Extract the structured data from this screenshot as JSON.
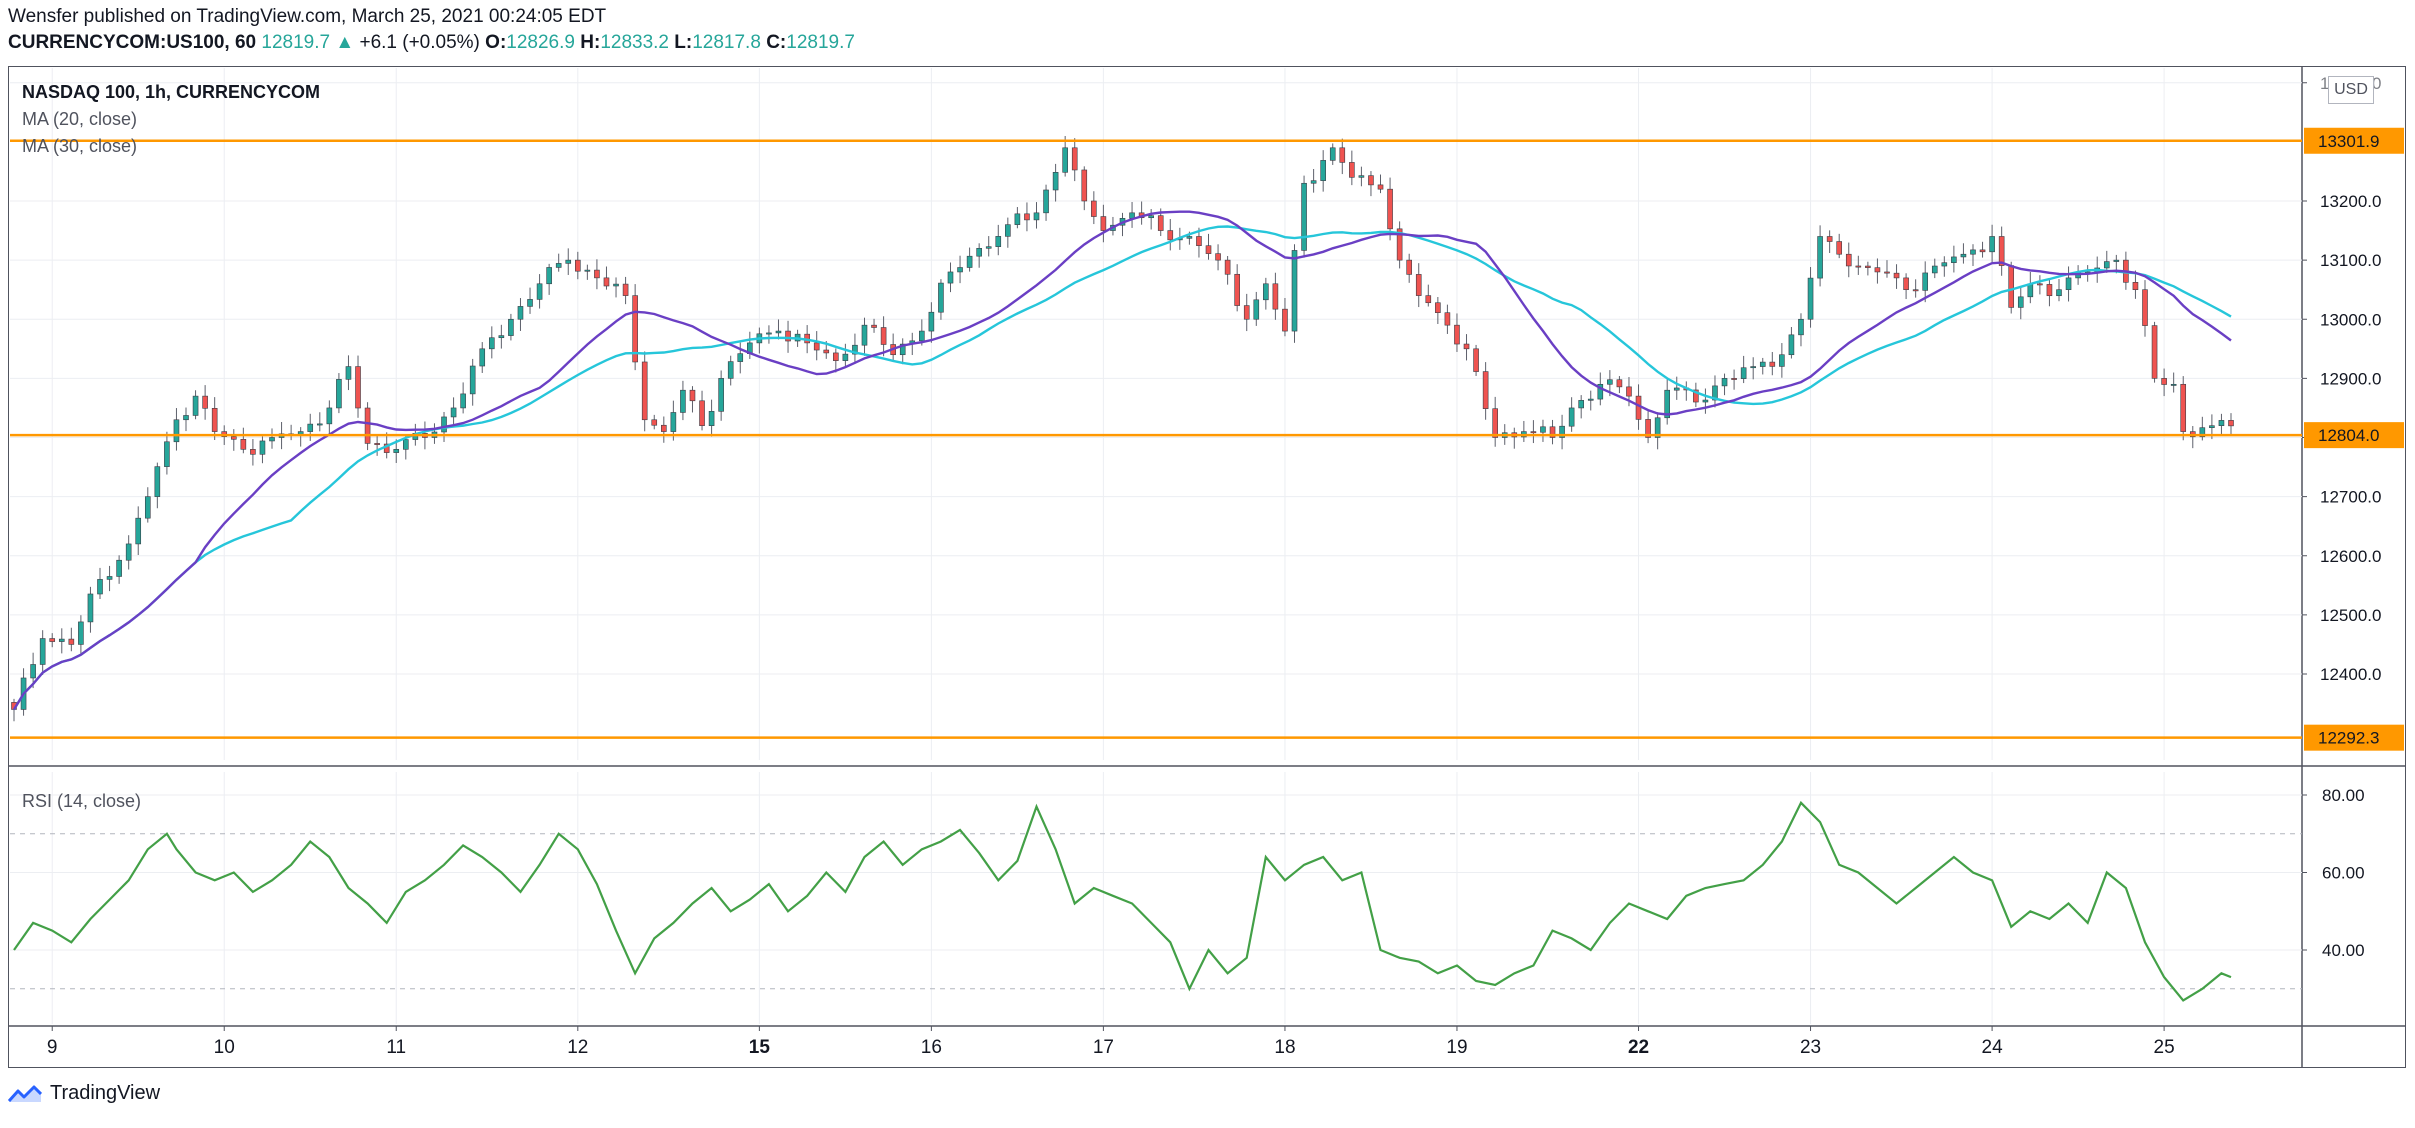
{
  "header": {
    "line1": "Wensfer published on TradingView.com, March 25, 2021 00:24:05 EDT",
    "symbol": "CURRENCYCOM:US100, 60",
    "last": "12819.7",
    "change": "+6.1 (+0.05%)",
    "o_label": "O:",
    "o_val": "12826.9",
    "h_label": "H:",
    "h_val": "12833.2",
    "l_label": "L:",
    "l_val": "12817.8",
    "c_label": "C:",
    "c_val": "12819.7"
  },
  "legend": {
    "title": "NASDAQ 100, 1h, CURRENCYCOM",
    "ma20": "MA (20, close)",
    "ma30": "MA (30, close)",
    "rsi": "RSI (14, close)"
  },
  "currency": "USD",
  "footer": {
    "brand": "TradingView"
  },
  "colors": {
    "up": "#26a69a",
    "down": "#ef5350",
    "ma20": "#6a3fc4",
    "ma30": "#26c6da",
    "level": "#ff9800",
    "rsi": "#43a047"
  },
  "chart_data": [
    {
      "type": "candlestick",
      "title": "NASDAQ 100, 1h, CURRENCYCOM",
      "x_ticks": [
        "9",
        "10",
        "11",
        "12",
        "15",
        "16",
        "17",
        "18",
        "19",
        "22",
        "23",
        "24",
        "25"
      ],
      "y_ticks": [
        "13400.0",
        "13200.0",
        "13100.0",
        "13000.0",
        "12900.0",
        "12800.0",
        "12700.0",
        "12600.0",
        "12500.0",
        "12400.0"
      ],
      "ylim": [
        12280,
        13420
      ],
      "horizontal_levels": [
        "13301.9",
        "12804.0",
        "12292.3"
      ],
      "series": [
        {
          "name": "MA (20, close)",
          "color": "#6a3fc4"
        },
        {
          "name": "MA (30, close)",
          "color": "#26c6da"
        }
      ],
      "close_anchors": [
        [
          0,
          12340
        ],
        [
          3,
          12460
        ],
        [
          6,
          12450
        ],
        [
          9,
          12560
        ],
        [
          12,
          12620
        ],
        [
          14,
          12700
        ],
        [
          17,
          12830
        ],
        [
          19,
          12870
        ],
        [
          21,
          12810
        ],
        [
          24,
          12780
        ],
        [
          27,
          12800
        ],
        [
          30,
          12810
        ],
        [
          33,
          12850
        ],
        [
          35,
          12920
        ],
        [
          37,
          12790
        ],
        [
          40,
          12780
        ],
        [
          43,
          12800
        ],
        [
          46,
          12850
        ],
        [
          49,
          12950
        ],
        [
          52,
          13000
        ],
        [
          55,
          13060
        ],
        [
          58,
          13100
        ],
        [
          61,
          13070
        ],
        [
          64,
          13040
        ],
        [
          66,
          12830
        ],
        [
          68,
          12810
        ],
        [
          70,
          12880
        ],
        [
          72,
          12820
        ],
        [
          74,
          12900
        ],
        [
          77,
          12960
        ],
        [
          80,
          12980
        ],
        [
          83,
          12960
        ],
        [
          86,
          12930
        ],
        [
          89,
          12990
        ],
        [
          92,
          12940
        ],
        [
          95,
          12980
        ],
        [
          98,
          13080
        ],
        [
          101,
          13120
        ],
        [
          104,
          13160
        ],
        [
          107,
          13180
        ],
        [
          110,
          13290
        ],
        [
          112,
          13200
        ],
        [
          114,
          13150
        ],
        [
          117,
          13180
        ],
        [
          120,
          13150
        ],
        [
          123,
          13140
        ],
        [
          126,
          13100
        ],
        [
          129,
          13000
        ],
        [
          131,
          13060
        ],
        [
          133,
          12980
        ],
        [
          135,
          13230
        ],
        [
          138,
          13290
        ],
        [
          140,
          13240
        ],
        [
          143,
          13220
        ],
        [
          145,
          13100
        ],
        [
          147,
          13040
        ],
        [
          150,
          12990
        ],
        [
          152,
          12950
        ],
        [
          155,
          12800
        ],
        [
          158,
          12810
        ],
        [
          161,
          12800
        ],
        [
          163,
          12850
        ],
        [
          166,
          12890
        ],
        [
          169,
          12870
        ],
        [
          171,
          12800
        ],
        [
          173,
          12880
        ],
        [
          176,
          12860
        ],
        [
          179,
          12900
        ],
        [
          182,
          12920
        ],
        [
          185,
          12940
        ],
        [
          187,
          13000
        ],
        [
          189,
          13140
        ],
        [
          191,
          13110
        ],
        [
          193,
          13090
        ],
        [
          195,
          13080
        ],
        [
          198,
          13050
        ],
        [
          201,
          13090
        ],
        [
          204,
          13110
        ],
        [
          207,
          13140
        ],
        [
          209,
          13020
        ],
        [
          211,
          13060
        ],
        [
          214,
          13050
        ],
        [
          217,
          13080
        ],
        [
          220,
          13100
        ],
        [
          222,
          13050
        ],
        [
          224,
          12900
        ],
        [
          226,
          12890
        ],
        [
          227,
          12810
        ],
        [
          230,
          12820
        ],
        [
          232,
          12826
        ]
      ],
      "close_last": 12819.7
    },
    {
      "type": "line",
      "title": "RSI (14, close)",
      "y_ticks": [
        "80.00",
        "60.00",
        "40.00"
      ],
      "ylim": [
        20,
        82
      ],
      "guides": [
        70,
        30
      ],
      "values": [
        [
          0,
          40
        ],
        [
          2,
          47
        ],
        [
          4,
          45
        ],
        [
          6,
          42
        ],
        [
          8,
          48
        ],
        [
          10,
          53
        ],
        [
          12,
          58
        ],
        [
          14,
          66
        ],
        [
          16,
          70
        ],
        [
          17,
          66
        ],
        [
          19,
          60
        ],
        [
          21,
          58
        ],
        [
          23,
          60
        ],
        [
          25,
          55
        ],
        [
          27,
          58
        ],
        [
          29,
          62
        ],
        [
          31,
          68
        ],
        [
          33,
          64
        ],
        [
          35,
          56
        ],
        [
          37,
          52
        ],
        [
          39,
          47
        ],
        [
          41,
          55
        ],
        [
          43,
          58
        ],
        [
          45,
          62
        ],
        [
          47,
          67
        ],
        [
          49,
          64
        ],
        [
          51,
          60
        ],
        [
          53,
          55
        ],
        [
          55,
          62
        ],
        [
          57,
          70
        ],
        [
          59,
          66
        ],
        [
          61,
          57
        ],
        [
          63,
          45
        ],
        [
          65,
          34
        ],
        [
          67,
          43
        ],
        [
          69,
          47
        ],
        [
          71,
          52
        ],
        [
          73,
          56
        ],
        [
          75,
          50
        ],
        [
          77,
          53
        ],
        [
          79,
          57
        ],
        [
          81,
          50
        ],
        [
          83,
          54
        ],
        [
          85,
          60
        ],
        [
          87,
          55
        ],
        [
          89,
          64
        ],
        [
          91,
          68
        ],
        [
          93,
          62
        ],
        [
          95,
          66
        ],
        [
          97,
          68
        ],
        [
          99,
          71
        ],
        [
          101,
          65
        ],
        [
          103,
          58
        ],
        [
          105,
          63
        ],
        [
          107,
          77
        ],
        [
          109,
          66
        ],
        [
          111,
          52
        ],
        [
          113,
          56
        ],
        [
          115,
          54
        ],
        [
          117,
          52
        ],
        [
          119,
          47
        ],
        [
          121,
          42
        ],
        [
          123,
          30
        ],
        [
          125,
          40
        ],
        [
          127,
          34
        ],
        [
          129,
          38
        ],
        [
          131,
          64
        ],
        [
          133,
          58
        ],
        [
          135,
          62
        ],
        [
          137,
          64
        ],
        [
          139,
          58
        ],
        [
          141,
          60
        ],
        [
          143,
          40
        ],
        [
          145,
          38
        ],
        [
          147,
          37
        ],
        [
          149,
          34
        ],
        [
          151,
          36
        ],
        [
          153,
          32
        ],
        [
          155,
          31
        ],
        [
          157,
          34
        ],
        [
          159,
          36
        ],
        [
          161,
          45
        ],
        [
          163,
          43
        ],
        [
          165,
          40
        ],
        [
          167,
          47
        ],
        [
          169,
          52
        ],
        [
          171,
          50
        ],
        [
          173,
          48
        ],
        [
          175,
          54
        ],
        [
          177,
          56
        ],
        [
          179,
          57
        ],
        [
          181,
          58
        ],
        [
          183,
          62
        ],
        [
          185,
          68
        ],
        [
          187,
          78
        ],
        [
          189,
          73
        ],
        [
          191,
          62
        ],
        [
          193,
          60
        ],
        [
          195,
          56
        ],
        [
          197,
          52
        ],
        [
          199,
          56
        ],
        [
          201,
          60
        ],
        [
          203,
          64
        ],
        [
          205,
          60
        ],
        [
          207,
          58
        ],
        [
          209,
          46
        ],
        [
          211,
          50
        ],
        [
          213,
          48
        ],
        [
          215,
          52
        ],
        [
          217,
          47
        ],
        [
          219,
          60
        ],
        [
          221,
          56
        ],
        [
          223,
          42
        ],
        [
          225,
          33
        ],
        [
          227,
          27
        ],
        [
          229,
          30
        ],
        [
          231,
          34
        ],
        [
          232,
          33
        ]
      ]
    }
  ]
}
